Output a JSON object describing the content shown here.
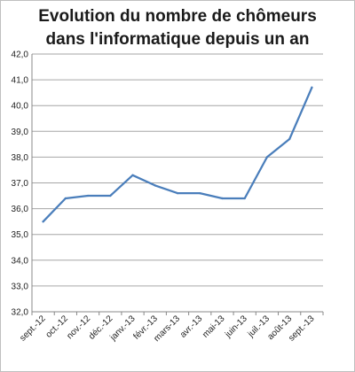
{
  "chart_data": {
    "type": "line",
    "title_lines": [
      "Evolution du nombre de chômeurs",
      "dans l'informatique depuis un an"
    ],
    "categories": [
      "sept.-12",
      "oct.-12",
      "nov.-12",
      "déc.-12",
      "janv.-13",
      "févr.-13",
      "mars-13",
      "avr.-13",
      "mai-13",
      "juin-13",
      "juil.-13",
      "août-13",
      "sept.-13"
    ],
    "y_ticks": [
      "42,0",
      "41,0",
      "40,0",
      "39,0",
      "38,0",
      "37,0",
      "36,0",
      "35,0",
      "34,0",
      "33,0",
      "32,0"
    ],
    "series": [
      {
        "values": [
          35.5,
          36.4,
          36.5,
          36.5,
          37.3,
          36.9,
          36.6,
          36.6,
          36.4,
          36.4,
          38.0,
          38.7,
          40.7
        ]
      }
    ],
    "xlabel": "",
    "ylabel": "",
    "ylim": [
      32,
      42
    ],
    "grid": true,
    "legend": "none",
    "line_color": "#4a7ebb",
    "grid_color": "#a6a6a6"
  }
}
